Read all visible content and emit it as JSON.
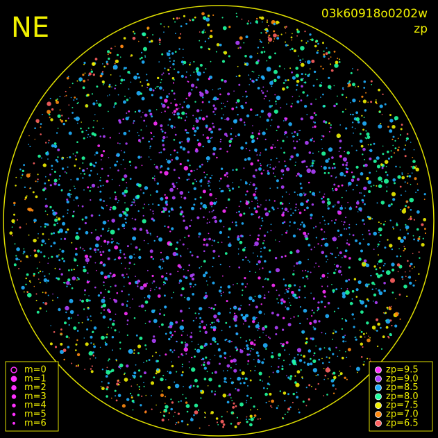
{
  "corner_label": "NE",
  "header": {
    "title": "03k60918o0202w",
    "subtitle": "zp"
  },
  "magnitude_legend": {
    "items": [
      "m=0",
      "m=1",
      "m=2",
      "m=3",
      "m=4",
      "m=5",
      "m=6"
    ]
  },
  "zp_legend": {
    "items": [
      {
        "label": "zp=9.5",
        "color": "#ff30ff"
      },
      {
        "label": "zp=9.0",
        "color": "#b040ff"
      },
      {
        "label": "zp=8.5",
        "color": "#20b0ff"
      },
      {
        "label": "zp=8.0",
        "color": "#20ffa0"
      },
      {
        "label": "zp=7.5",
        "color": "#f0f000"
      },
      {
        "label": "zp=7.0",
        "color": "#ff8a10"
      },
      {
        "label": "zp=6.5",
        "color": "#ff6060"
      }
    ]
  }
}
